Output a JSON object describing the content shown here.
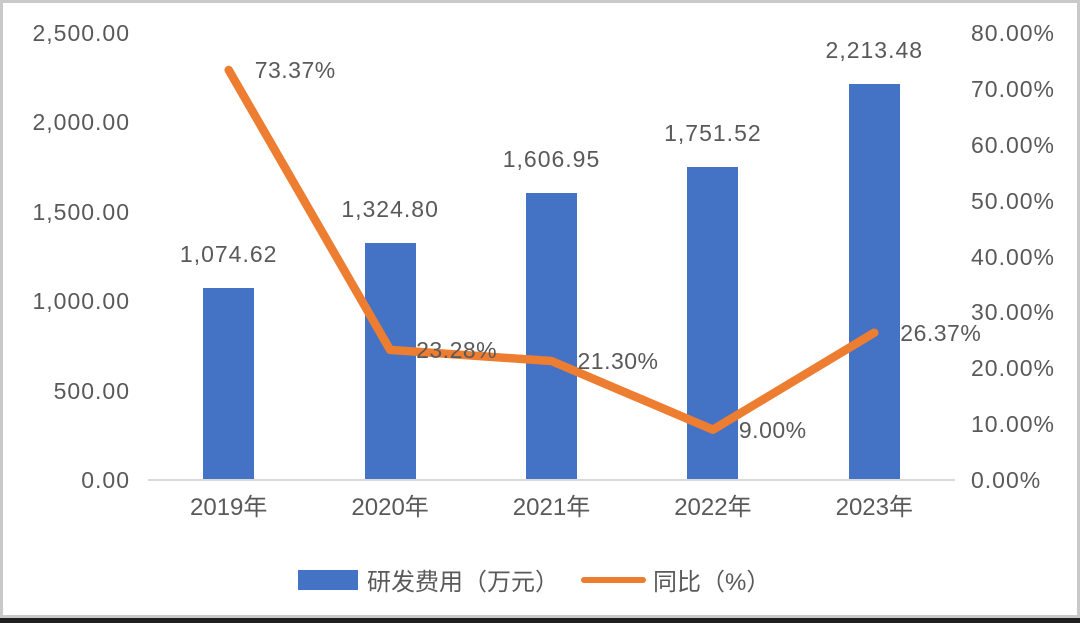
{
  "chart_data": {
    "type": "bar+line",
    "categories": [
      "2019年",
      "2020年",
      "2021年",
      "2022年",
      "2023年"
    ],
    "series": [
      {
        "name": "研发费用（万元）",
        "type": "bar",
        "axis": "left",
        "values": [
          1074.62,
          1324.8,
          1606.95,
          1751.52,
          2213.48
        ],
        "labels": [
          "1,074.62",
          "1,324.80",
          "1,606.95",
          "1,751.52",
          "2,213.48"
        ],
        "color": "#4472C4"
      },
      {
        "name": "同比（%）",
        "type": "line",
        "axis": "right",
        "values": [
          73.37,
          23.28,
          21.3,
          9.0,
          26.37
        ],
        "labels": [
          "73.37%",
          "23.28%",
          "21.30%",
          "9.00%",
          "26.37%"
        ],
        "color": "#ED7D31"
      }
    ],
    "left_axis": {
      "min": 0,
      "max": 2500,
      "step": 500,
      "tick_labels": [
        "2,500.00",
        "2,000.00",
        "1,500.00",
        "1,000.00",
        "500.00",
        "0.00"
      ]
    },
    "right_axis": {
      "min": 0,
      "max": 80,
      "step": 10,
      "tick_labels": [
        "80.00%",
        "70.00%",
        "60.00%",
        "50.00%",
        "40.00%",
        "30.00%",
        "20.00%",
        "10.00%",
        "0.00%"
      ]
    },
    "legend": [
      {
        "label": "研发费用（万元）",
        "swatch": "bar"
      },
      {
        "label": "同比（%）",
        "swatch": "line"
      }
    ],
    "legend_position": "bottom",
    "grid": false,
    "colors": {
      "bar": "#4472C4",
      "line": "#ED7D31",
      "text": "#595959",
      "axis_line": "#D9D9D9"
    }
  }
}
